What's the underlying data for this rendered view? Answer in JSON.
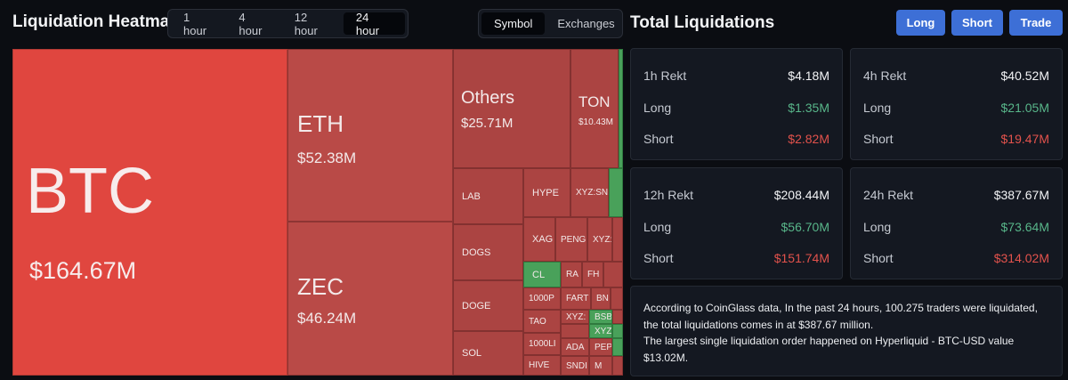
{
  "header": {
    "title": "Liquidation Heatmap",
    "time_tabs": [
      "1 hour",
      "4 hour",
      "12 hour",
      "24 hour"
    ],
    "active_time_tab": "24 hour",
    "view_tabs": [
      "Symbol",
      "Exchanges"
    ],
    "active_view_tab": "Symbol",
    "panel_title": "Total Liquidations",
    "buttons": {
      "long": "Long",
      "short": "Short",
      "trade": "Trade"
    }
  },
  "treemap": {
    "btc": {
      "name": "BTC",
      "value": "$164.67M"
    },
    "eth": {
      "name": "ETH",
      "value": "$52.38M"
    },
    "zec": {
      "name": "ZEC",
      "value": "$46.24M"
    },
    "others": {
      "name": "Others",
      "value": "$25.71M"
    },
    "ton": {
      "name": "TON",
      "value": "$10.43M"
    },
    "lab": "LAB",
    "dogs": "DOGS",
    "doge": "DOGE",
    "sol": "SOL",
    "hype": "HYPE",
    "xyzsn": "XYZ:SN",
    "xag": "XAG",
    "peng": "PENG",
    "xyzz": "XYZ:",
    "cl": "CL",
    "ra": "RA",
    "fh": "FH",
    "p1000": "1000P",
    "fart": "FART",
    "bn": "BN",
    "tao": "TAO",
    "xyz2": "XYZ:",
    "bsb": "BSB",
    "l1000": "1000LI",
    "ada": "ADA",
    "pep": "PEP",
    "xyz3": "XYZ",
    "hive": "HIVE",
    "sndi": "SNDI",
    "m": "M"
  },
  "stats": {
    "h1": {
      "title": "1h Rekt",
      "total": "$4.18M",
      "long_label": "Long",
      "long": "$1.35M",
      "short_label": "Short",
      "short": "$2.82M"
    },
    "h4": {
      "title": "4h Rekt",
      "total": "$40.52M",
      "long_label": "Long",
      "long": "$21.05M",
      "short_label": "Short",
      "short": "$19.47M"
    },
    "h12": {
      "title": "12h Rekt",
      "total": "$208.44M",
      "long_label": "Long",
      "long": "$56.70M",
      "short_label": "Short",
      "short": "$151.74M"
    },
    "h24": {
      "title": "24h Rekt",
      "total": "$387.67M",
      "long_label": "Long",
      "long": "$73.64M",
      "short_label": "Short",
      "short": "$314.02M"
    }
  },
  "info": {
    "line1": "According to CoinGlass data, In the past 24 hours, 100.275 traders were liquidated, the total liquidations comes in at $387.67 million.",
    "line2": "The largest single liquidation order happened on Hyperliquid - BTC-USD value $13.02M."
  },
  "colors": {
    "accent": "#3d6fd6",
    "long": "#58b68a",
    "short": "#e2524c",
    "treemap_red": "#e0463f",
    "treemap_green": "#49a15a"
  }
}
